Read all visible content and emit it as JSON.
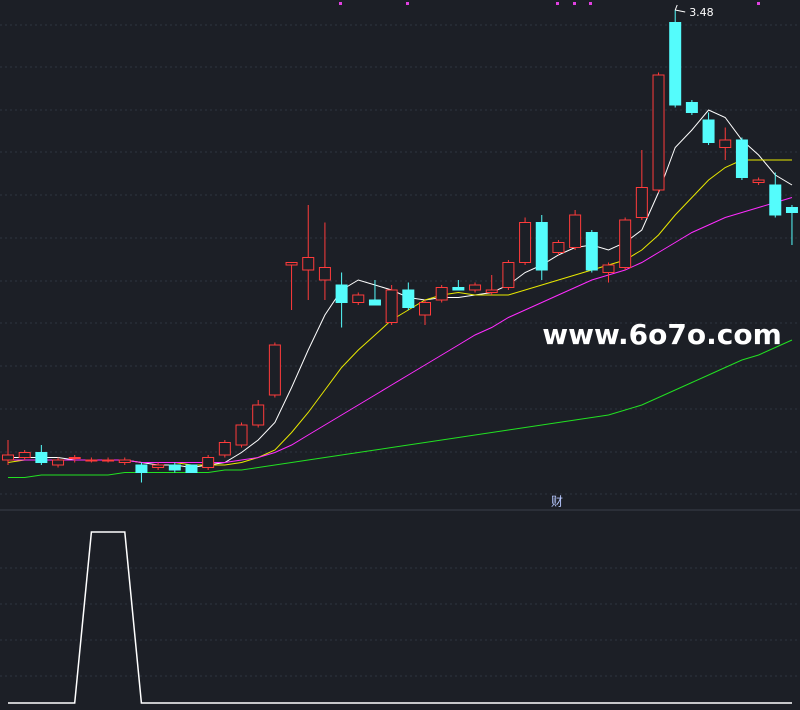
{
  "chart_data": {
    "type": "candlestick",
    "ylim": [
      1.5,
      3.52
    ],
    "up_color": "#ff3b3b",
    "down_color": "#54fcfc",
    "open": [
      1.68,
      1.69,
      1.71,
      1.66,
      1.69,
      1.68,
      1.68,
      1.67,
      1.66,
      1.65,
      1.66,
      1.66,
      1.65,
      1.7,
      1.74,
      1.82,
      1.94,
      2.46,
      2.44,
      2.4,
      2.38,
      2.31,
      2.32,
      2.23,
      2.36,
      2.26,
      2.32,
      2.37,
      2.36,
      2.35,
      2.37,
      2.47,
      2.63,
      2.51,
      2.53,
      2.59,
      2.43,
      2.45,
      2.65,
      2.76,
      3.43,
      3.11,
      3.04,
      2.93,
      2.96,
      2.79,
      2.78,
      2.69
    ],
    "high": [
      1.76,
      1.72,
      1.74,
      1.69,
      1.7,
      1.69,
      1.69,
      1.69,
      1.67,
      1.67,
      1.67,
      1.66,
      1.7,
      1.76,
      1.83,
      1.92,
      2.15,
      2.47,
      2.7,
      2.63,
      2.43,
      2.35,
      2.4,
      2.38,
      2.39,
      2.32,
      2.38,
      2.4,
      2.39,
      2.42,
      2.48,
      2.65,
      2.66,
      2.56,
      2.68,
      2.6,
      2.47,
      2.65,
      2.92,
      3.23,
      3.48,
      3.12,
      3.07,
      3.01,
      2.97,
      2.81,
      2.83,
      2.7
    ],
    "low": [
      1.66,
      1.68,
      1.66,
      1.65,
      1.67,
      1.67,
      1.67,
      1.66,
      1.59,
      1.64,
      1.63,
      1.63,
      1.64,
      1.69,
      1.73,
      1.81,
      1.93,
      2.28,
      2.32,
      2.32,
      2.21,
      2.3,
      2.3,
      2.22,
      2.28,
      2.22,
      2.31,
      2.36,
      2.35,
      2.34,
      2.36,
      2.46,
      2.4,
      2.5,
      2.52,
      2.43,
      2.39,
      2.44,
      2.64,
      2.75,
      3.09,
      3.06,
      2.94,
      2.88,
      2.8,
      2.78,
      2.65,
      2.54
    ],
    "close": [
      1.7,
      1.71,
      1.67,
      1.68,
      1.69,
      1.68,
      1.68,
      1.68,
      1.63,
      1.66,
      1.64,
      1.63,
      1.69,
      1.75,
      1.82,
      1.9,
      2.14,
      2.47,
      2.49,
      2.45,
      2.31,
      2.34,
      2.3,
      2.36,
      2.29,
      2.31,
      2.37,
      2.36,
      2.38,
      2.36,
      2.47,
      2.63,
      2.44,
      2.55,
      2.66,
      2.44,
      2.46,
      2.64,
      2.77,
      3.22,
      3.1,
      3.07,
      2.95,
      2.96,
      2.81,
      2.8,
      2.66,
      2.67
    ],
    "lines": [
      {
        "color": "#ffffff",
        "values": [
          1.69,
          1.69,
          1.69,
          1.69,
          1.68,
          1.68,
          1.68,
          1.68,
          1.67,
          1.66,
          1.66,
          1.65,
          1.66,
          1.67,
          1.71,
          1.76,
          1.83,
          1.97,
          2.12,
          2.26,
          2.36,
          2.4,
          2.38,
          2.36,
          2.33,
          2.32,
          2.33,
          2.33,
          2.34,
          2.35,
          2.38,
          2.43,
          2.46,
          2.5,
          2.53,
          2.54,
          2.52,
          2.55,
          2.6,
          2.75,
          2.93,
          3.0,
          3.08,
          3.05,
          2.96,
          2.9,
          2.82,
          2.78
        ]
      },
      {
        "color": "#e8e800",
        "values": [
          1.67,
          1.68,
          1.68,
          1.68,
          1.68,
          1.68,
          1.68,
          1.68,
          1.67,
          1.67,
          1.67,
          1.66,
          1.66,
          1.66,
          1.67,
          1.69,
          1.72,
          1.79,
          1.87,
          1.96,
          2.05,
          2.12,
          2.18,
          2.24,
          2.28,
          2.32,
          2.34,
          2.35,
          2.34,
          2.34,
          2.34,
          2.36,
          2.38,
          2.4,
          2.42,
          2.44,
          2.46,
          2.48,
          2.52,
          2.58,
          2.66,
          2.73,
          2.8,
          2.85,
          2.88,
          2.88,
          2.88,
          2.88
        ]
      },
      {
        "color": "#ff2cff",
        "values": [
          1.68,
          1.68,
          1.68,
          1.68,
          1.68,
          1.68,
          1.68,
          1.68,
          1.67,
          1.67,
          1.67,
          1.67,
          1.67,
          1.67,
          1.68,
          1.69,
          1.71,
          1.74,
          1.78,
          1.82,
          1.86,
          1.9,
          1.94,
          1.98,
          2.02,
          2.06,
          2.1,
          2.14,
          2.18,
          2.21,
          2.25,
          2.28,
          2.31,
          2.34,
          2.37,
          2.4,
          2.42,
          2.44,
          2.47,
          2.51,
          2.55,
          2.59,
          2.62,
          2.65,
          2.67,
          2.69,
          2.71,
          2.73
        ]
      },
      {
        "color": "#22e022",
        "values": [
          1.61,
          1.61,
          1.62,
          1.62,
          1.62,
          1.62,
          1.62,
          1.63,
          1.63,
          1.63,
          1.63,
          1.63,
          1.63,
          1.64,
          1.64,
          1.65,
          1.66,
          1.67,
          1.68,
          1.69,
          1.7,
          1.71,
          1.72,
          1.73,
          1.74,
          1.75,
          1.76,
          1.77,
          1.78,
          1.79,
          1.8,
          1.81,
          1.82,
          1.83,
          1.84,
          1.85,
          1.86,
          1.88,
          1.9,
          1.93,
          1.96,
          1.99,
          2.02,
          2.05,
          2.08,
          2.1,
          2.13,
          2.16
        ]
      }
    ],
    "indicator": {
      "color": "#ffffff",
      "ylim": [
        0,
        1
      ],
      "values": [
        0,
        0,
        0,
        0,
        0,
        1,
        1,
        1,
        0,
        0,
        0,
        0,
        0,
        0,
        0,
        0,
        0,
        0,
        0,
        0,
        0,
        0,
        0,
        0,
        0,
        0,
        0,
        0,
        0,
        0,
        0,
        0,
        0,
        0,
        0,
        0,
        0,
        0,
        0,
        0,
        0,
        0,
        0,
        0,
        0,
        0,
        0,
        0
      ]
    },
    "panel_label": "财",
    "watermark": "www.6o7o.com"
  }
}
